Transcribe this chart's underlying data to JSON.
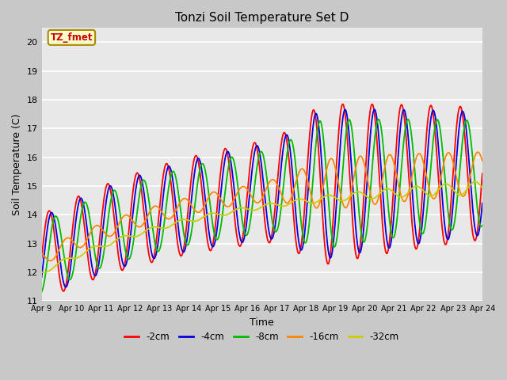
{
  "title": "Tonzi Soil Temperature Set D",
  "xlabel": "Time",
  "ylabel": "Soil Temperature (C)",
  "ylim": [
    11.0,
    20.5
  ],
  "yticks": [
    11.0,
    12.0,
    13.0,
    14.0,
    15.0,
    16.0,
    17.0,
    18.0,
    19.0,
    20.0
  ],
  "colors": {
    "-2cm": "#ff0000",
    "-4cm": "#0000dd",
    "-8cm": "#00bb00",
    "-16cm": "#ff8800",
    "-32cm": "#cccc00"
  },
  "legend_labels": [
    "-2cm",
    "-4cm",
    "-8cm",
    "-16cm",
    "-32cm"
  ],
  "xtick_labels": [
    "Apr 9",
    "Apr 10",
    "Apr 11",
    "Apr 12",
    "Apr 13",
    "Apr 14",
    "Apr 15",
    "Apr 16",
    "Apr 17",
    "Apr 18",
    "Apr 19",
    "Apr 20",
    "Apr 21",
    "Apr 22",
    "Apr 23",
    "Apr 24"
  ],
  "annotation_text": "TZ_fmet",
  "fig_bg": "#c8c8c8",
  "plot_bg": "#e8e8e8",
  "grid_color": "#ffffff"
}
